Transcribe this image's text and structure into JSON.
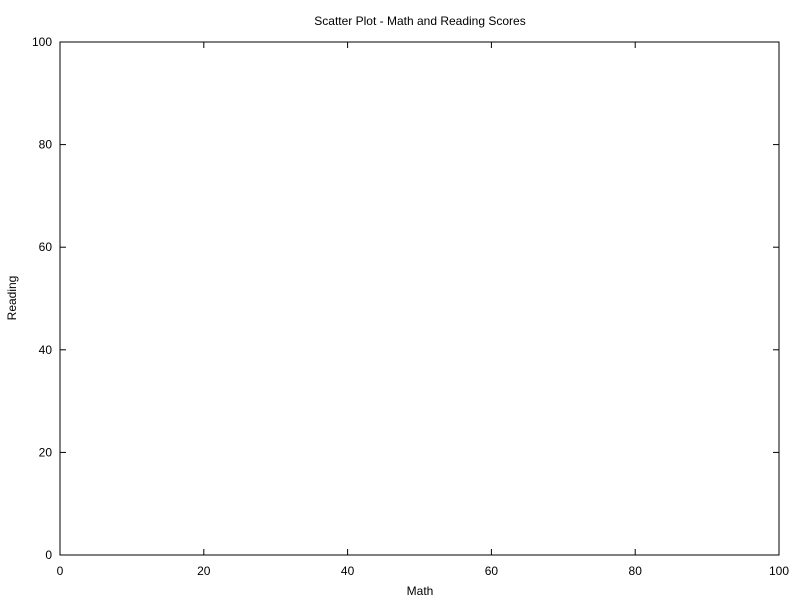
{
  "chart_data": {
    "type": "scatter",
    "title": "Scatter Plot - Math and Reading Scores",
    "xlabel": "Math",
    "ylabel": "Reading",
    "xlim": [
      0,
      100
    ],
    "ylim": [
      0,
      100
    ],
    "x_ticks": [
      0,
      20,
      40,
      60,
      80,
      100
    ],
    "y_ticks": [
      0,
      20,
      40,
      60,
      80,
      100
    ],
    "x_tick_labels": [
      "0",
      "20",
      "40",
      "60",
      "80",
      "100"
    ],
    "y_tick_labels": [
      "0",
      "20",
      "40",
      "60",
      "80",
      "100"
    ],
    "grid": false,
    "series": [
      {
        "x": [],
        "y": []
      }
    ]
  }
}
